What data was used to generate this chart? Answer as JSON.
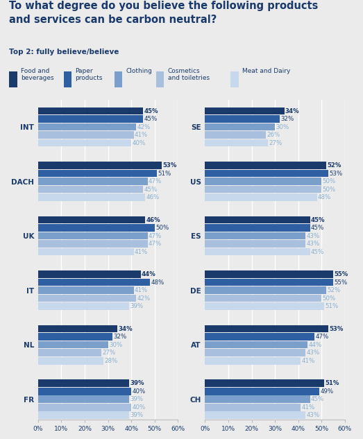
{
  "title": "To what degree do you believe the following products\nand services can be carbon neutral?",
  "subtitle": "Top 2: fully believe/believe",
  "title_color": "#1a3a6b",
  "bg_color": "#ebebeb",
  "categories": [
    "Food and\nbeverages",
    "Paper\nproducts",
    "Clothing",
    "Cosmetics\nand toiletries",
    "Meat and Dairy"
  ],
  "bar_colors": [
    "#1a3a6b",
    "#2e5fa3",
    "#7a9fcb",
    "#a8c0de",
    "#c8d8ec"
  ],
  "left_groups": [
    {
      "label": "INT",
      "values": [
        45,
        45,
        42,
        41,
        40
      ]
    },
    {
      "label": "DACH",
      "values": [
        53,
        51,
        47,
        45,
        46
      ]
    },
    {
      "label": "UK",
      "values": [
        46,
        50,
        47,
        47,
        41
      ]
    },
    {
      "label": "IT",
      "values": [
        44,
        48,
        41,
        42,
        39
      ]
    },
    {
      "label": "NL",
      "values": [
        34,
        32,
        30,
        27,
        28
      ]
    },
    {
      "label": "FR",
      "values": [
        39,
        40,
        39,
        40,
        39
      ]
    }
  ],
  "right_groups": [
    {
      "label": "SE",
      "values": [
        34,
        32,
        30,
        26,
        27
      ]
    },
    {
      "label": "US",
      "values": [
        52,
        53,
        50,
        50,
        48
      ]
    },
    {
      "label": "ES",
      "values": [
        45,
        45,
        43,
        43,
        45
      ]
    },
    {
      "label": "DE",
      "values": [
        55,
        55,
        52,
        50,
        51
      ]
    },
    {
      "label": "AT",
      "values": [
        53,
        47,
        44,
        43,
        41
      ]
    },
    {
      "label": "CH",
      "values": [
        51,
        49,
        45,
        41,
        43
      ]
    }
  ],
  "xlim": 60,
  "xticks": [
    0,
    10,
    20,
    30,
    40,
    50,
    60
  ],
  "label_fontsize": 7.5,
  "value_fontsize": 6.2,
  "tick_fontsize": 6.5,
  "text_color_dark": "#1a3a6b",
  "text_color_light": "#8ab0cf"
}
